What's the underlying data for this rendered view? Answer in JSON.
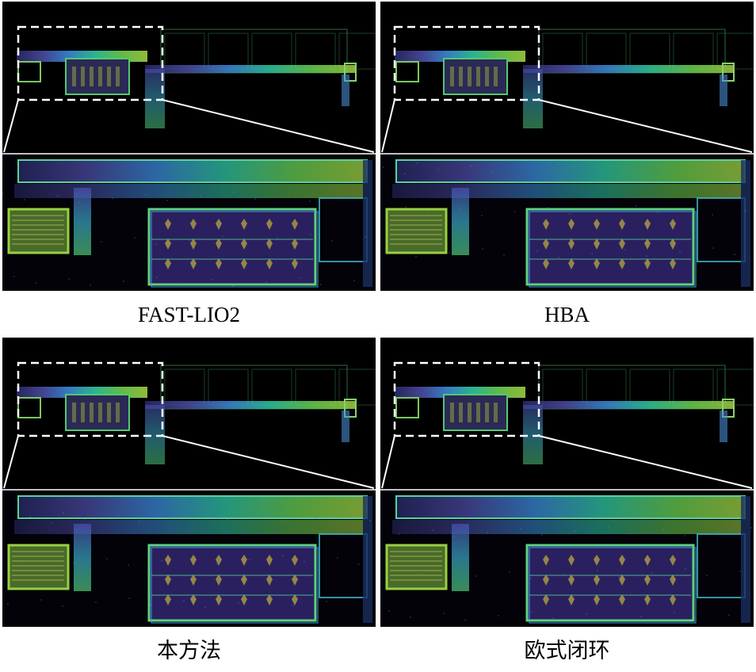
{
  "panels": [
    {
      "caption": "FAST-LIO2"
    },
    {
      "caption": "HBA"
    },
    {
      "caption": "本方法"
    },
    {
      "caption": "欧式闭环"
    }
  ],
  "colors": {
    "background": "#000000",
    "point_cloud_gradient": [
      "#2a2a6a",
      "#4a4aa0",
      "#3a8ad8",
      "#30c8a0",
      "#6ad050",
      "#a0d040"
    ],
    "inset_box": "#ffffff"
  }
}
